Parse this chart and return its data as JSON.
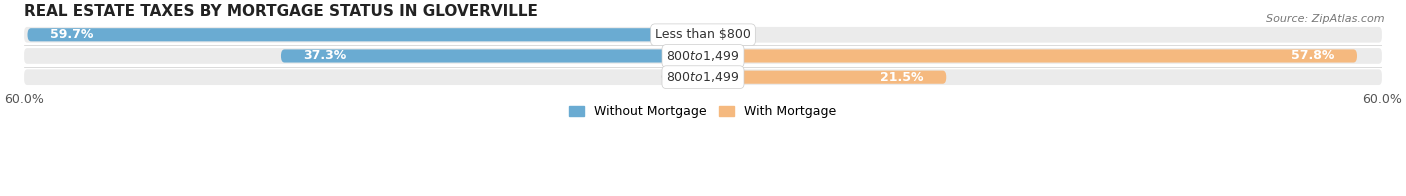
{
  "title": "REAL ESTATE TAXES BY MORTGAGE STATUS IN GLOVERVILLE",
  "source": "Source: ZipAtlas.com",
  "categories": [
    "Less than $800",
    "$800 to $1,499",
    "$800 to $1,499"
  ],
  "without_mortgage": [
    59.7,
    37.3,
    0.0
  ],
  "with_mortgage": [
    0.0,
    57.8,
    21.5
  ],
  "color_without": "#6aabd2",
  "color_with": "#f5b97f",
  "color_without_light": "#b8d9ee",
  "color_with_light": "#fad9b5",
  "bar_height": 0.62,
  "xlim": [
    -60,
    60
  ],
  "xtick_left": -60,
  "xtick_right": 60,
  "xticklabel_left": "60.0%",
  "xticklabel_right": "60.0%",
  "bg_color": "#ebebeb",
  "title_fontsize": 11,
  "bar_label_fontsize": 9,
  "cat_label_fontsize": 9,
  "legend_fontsize": 9,
  "source_fontsize": 8
}
